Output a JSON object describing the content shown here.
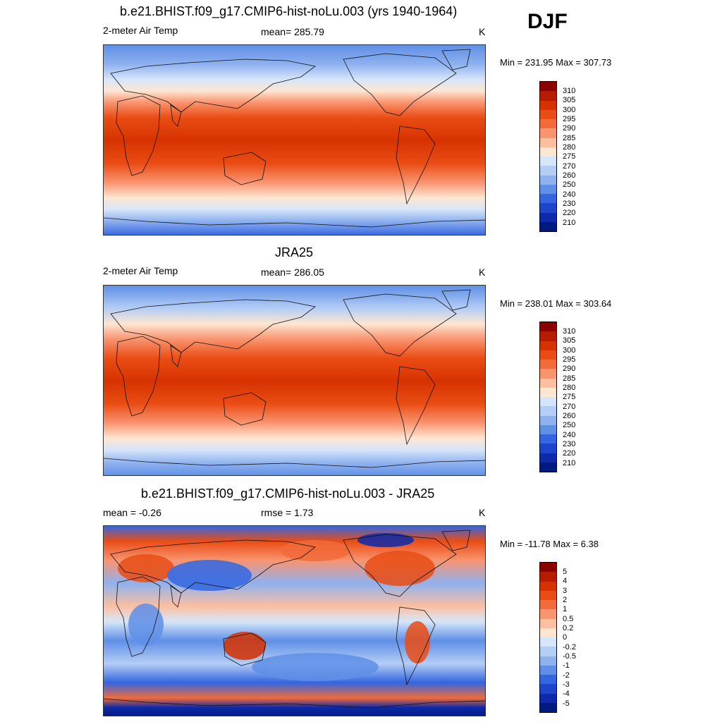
{
  "season": "DJF",
  "panels": [
    {
      "title": "b.e21.BHIST.f09_g17.CMIP6-hist-noLu.003 (yrs 1940-1964)",
      "left_label": "2-meter Air Temp",
      "center_label": "mean= 285.79",
      "units": "K",
      "minmax": "Min = 231.95 Max = 307.73",
      "cbar_labels": [
        "310",
        "305",
        "300",
        "295",
        "290",
        "285",
        "280",
        "275",
        "270",
        "260",
        "250",
        "240",
        "230",
        "220",
        "210"
      ]
    },
    {
      "title": "JRA25",
      "left_label": "2-meter Air Temp",
      "center_label": "mean= 286.05",
      "units": "K",
      "minmax": "Min = 238.01 Max = 303.64",
      "cbar_labels": [
        "310",
        "305",
        "300",
        "295",
        "290",
        "285",
        "280",
        "275",
        "270",
        "260",
        "250",
        "240",
        "230",
        "220",
        "210"
      ]
    },
    {
      "title": "b.e21.BHIST.f09_g17.CMIP6-hist-noLu.003 - JRA25",
      "left_label": "mean =  -0.26",
      "center_label": "rmse =   1.73",
      "units": "K",
      "minmax": "Min = -11.78 Max =   6.38",
      "cbar_labels": [
        "5",
        "4",
        "3",
        "2",
        "1",
        "0.5",
        "0.2",
        "0",
        "-0.2",
        "-0.5",
        "-1",
        "-2",
        "-3",
        "-4",
        "-5"
      ]
    }
  ],
  "colors": {
    "palette": [
      "#8b0000",
      "#b71c00",
      "#d63200",
      "#ea4d14",
      "#f26b3a",
      "#f99470",
      "#fcbfa0",
      "#fde6d2",
      "#d6e6fa",
      "#b4cdf5",
      "#8fb1ef",
      "#5f8fe6",
      "#3366e0",
      "#1c44cc",
      "#0c2aaa",
      "#001a80"
    ],
    "land_line": "#111111"
  }
}
